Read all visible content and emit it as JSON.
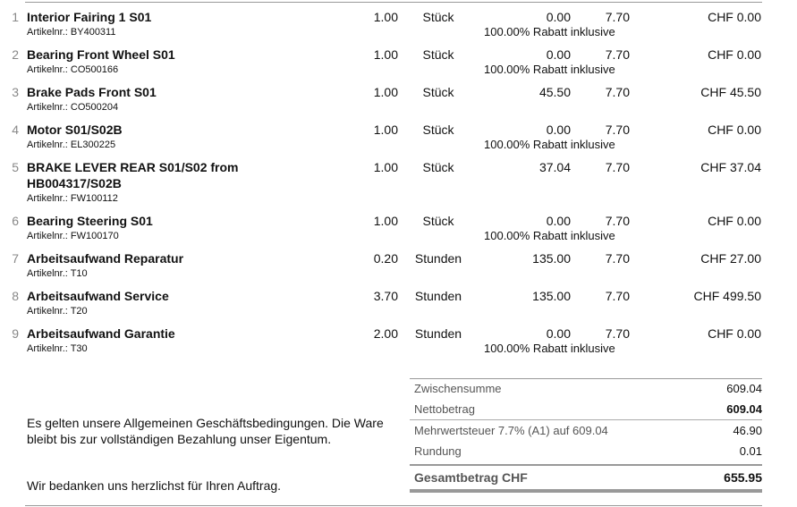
{
  "items": [
    {
      "no": "1",
      "name": "Interior Fairing 1 S01",
      "article": "Artikelnr.: BY400311",
      "qty": "1.00",
      "unit": "Stück",
      "price": "0.00",
      "tax": "7.70",
      "total": "CHF 0.00",
      "discount": "100.00% Rabatt inklusive"
    },
    {
      "no": "2",
      "name": "Bearing Front Wheel S01",
      "article": "Artikelnr.: CO500166",
      "qty": "1.00",
      "unit": "Stück",
      "price": "0.00",
      "tax": "7.70",
      "total": "CHF 0.00",
      "discount": "100.00% Rabatt inklusive"
    },
    {
      "no": "3",
      "name": "Brake Pads Front S01",
      "article": "Artikelnr.: CO500204",
      "qty": "1.00",
      "unit": "Stück",
      "price": "45.50",
      "tax": "7.70",
      "total": "CHF 45.50"
    },
    {
      "no": "4",
      "name": "Motor S01/S02B",
      "article": "Artikelnr.: EL300225",
      "qty": "1.00",
      "unit": "Stück",
      "price": "0.00",
      "tax": "7.70",
      "total": "CHF 0.00",
      "discount": "100.00% Rabatt inklusive"
    },
    {
      "no": "5",
      "name": "BRAKE LEVER REAR S01/S02 from HB004317/S02B",
      "article": "Artikelnr.: FW100112",
      "qty": "1.00",
      "unit": "Stück",
      "price": "37.04",
      "tax": "7.70",
      "total": "CHF 37.04"
    },
    {
      "no": "6",
      "name": "Bearing Steering S01",
      "article": "Artikelnr.: FW100170",
      "qty": "1.00",
      "unit": "Stück",
      "price": "0.00",
      "tax": "7.70",
      "total": "CHF 0.00",
      "discount": "100.00% Rabatt inklusive"
    },
    {
      "no": "7",
      "name": "Arbeitsaufwand Reparatur",
      "article": "Artikelnr.: T10",
      "qty": "0.20",
      "unit": "Stunden",
      "price": "135.00",
      "tax": "7.70",
      "total": "CHF 27.00"
    },
    {
      "no": "8",
      "name": "Arbeitsaufwand Service",
      "article": "Artikelnr.: T20",
      "qty": "3.70",
      "unit": "Stunden",
      "price": "135.00",
      "tax": "7.70",
      "total": "CHF 499.50"
    },
    {
      "no": "9",
      "name": "Arbeitsaufwand Garantie",
      "article": "Artikelnr.: T30",
      "qty": "2.00",
      "unit": "Stunden",
      "price": "0.00",
      "tax": "7.70",
      "total": "CHF 0.00",
      "discount": "100.00% Rabatt inklusive"
    }
  ],
  "summary": [
    {
      "label": "Zwischensumme",
      "value": "609.04"
    },
    {
      "label": "Nettobetrag",
      "value": "609.04"
    },
    {
      "label": "Mehrwertsteuer 7.7% (A1) auf 609.04",
      "value": "46.90"
    },
    {
      "label": "Rundung",
      "value": "0.01"
    },
    {
      "label": "Gesamtbetrag CHF",
      "value": "655.95"
    }
  ],
  "footer": {
    "terms": "Es gelten unsere Allgemeinen Geschäftsbedingungen. Die Ware bleibt bis zur vollständigen Bezahlung unser Eigentum.",
    "thanks": "Wir bedanken uns herzlichst für Ihren Auftrag."
  }
}
